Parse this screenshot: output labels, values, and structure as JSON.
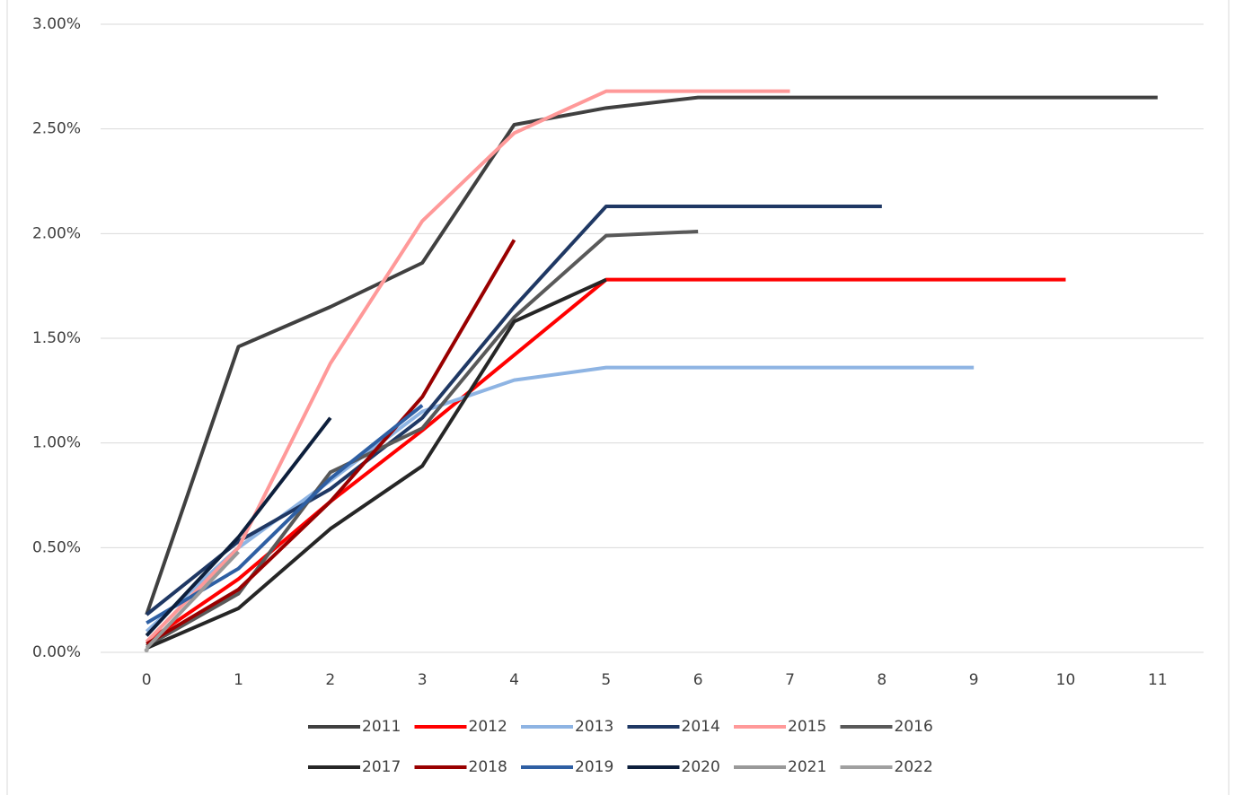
{
  "chart_data": {
    "type": "line",
    "x": [
      0,
      1,
      2,
      3,
      4,
      5,
      6,
      7,
      8,
      9,
      10,
      11
    ],
    "xlim": [
      -0.5,
      11.5
    ],
    "xticks": [
      0,
      1,
      2,
      3,
      4,
      5,
      6,
      7,
      8,
      9,
      10,
      11
    ],
    "ylim": [
      0,
      3
    ],
    "yticks": [
      {
        "value": 0,
        "label": "0.00%"
      },
      {
        "value": 0.5,
        "label": "0.50%"
      },
      {
        "value": 1,
        "label": "1.00%"
      },
      {
        "value": 1.5,
        "label": "1.50%"
      },
      {
        "value": 2,
        "label": "2.00%"
      },
      {
        "value": 2.5,
        "label": "2.50%"
      },
      {
        "value": 3,
        "label": "3.00%"
      }
    ],
    "grid": true,
    "legend": "bottom",
    "series": [
      {
        "name": "2011",
        "color": "#404040",
        "values": [
          0.18,
          1.46,
          1.65,
          1.86,
          2.52,
          2.6,
          2.65,
          2.65,
          2.65,
          2.65,
          2.65,
          2.65
        ]
      },
      {
        "name": "2012",
        "color": "#ff0000",
        "values": [
          0.05,
          0.35,
          0.72,
          1.06,
          1.42,
          1.78,
          1.78,
          1.78,
          1.78,
          1.78,
          1.78,
          null
        ]
      },
      {
        "name": "2013",
        "color": "#8eb4e3",
        "values": [
          0.1,
          0.5,
          0.82,
          1.15,
          1.3,
          1.36,
          1.36,
          1.36,
          1.36,
          1.36,
          null,
          null
        ]
      },
      {
        "name": "2014",
        "color": "#1f3864",
        "values": [
          0.18,
          0.53,
          0.78,
          1.12,
          1.65,
          2.13,
          2.13,
          2.13,
          2.13,
          null,
          null,
          null
        ]
      },
      {
        "name": "2015",
        "color": "#ff9999",
        "values": [
          0.05,
          0.5,
          1.38,
          2.06,
          2.48,
          2.68,
          2.68,
          2.68,
          null,
          null,
          null,
          null
        ]
      },
      {
        "name": "2016",
        "color": "#595959",
        "values": [
          0.03,
          0.28,
          0.86,
          1.07,
          1.6,
          1.99,
          2.01,
          null,
          null,
          null,
          null,
          null
        ]
      },
      {
        "name": "2017",
        "color": "#262626",
        "values": [
          0.02,
          0.21,
          0.59,
          0.89,
          1.58,
          1.78,
          null,
          null,
          null,
          null,
          null,
          null
        ]
      },
      {
        "name": "2018",
        "color": "#990000",
        "values": [
          0.04,
          0.3,
          0.72,
          1.22,
          1.97,
          null,
          null,
          null,
          null,
          null,
          null,
          null
        ]
      },
      {
        "name": "2019",
        "color": "#2e5fa3",
        "values": [
          0.14,
          0.4,
          0.83,
          1.18,
          null,
          null,
          null,
          null,
          null,
          null,
          null,
          null
        ]
      },
      {
        "name": "2020",
        "color": "#0d1f3c",
        "values": [
          0.08,
          0.55,
          1.12,
          null,
          null,
          null,
          null,
          null,
          null,
          null,
          null,
          null
        ]
      },
      {
        "name": "2021",
        "color": "#999999",
        "values": [
          0.02,
          0.48,
          null,
          null,
          null,
          null,
          null,
          null,
          null,
          null,
          null,
          null
        ]
      },
      {
        "name": "2022",
        "color": "#a0a0a0",
        "values": [
          0.01,
          null,
          null,
          null,
          null,
          null,
          null,
          null,
          null,
          null,
          null,
          null
        ]
      }
    ]
  }
}
